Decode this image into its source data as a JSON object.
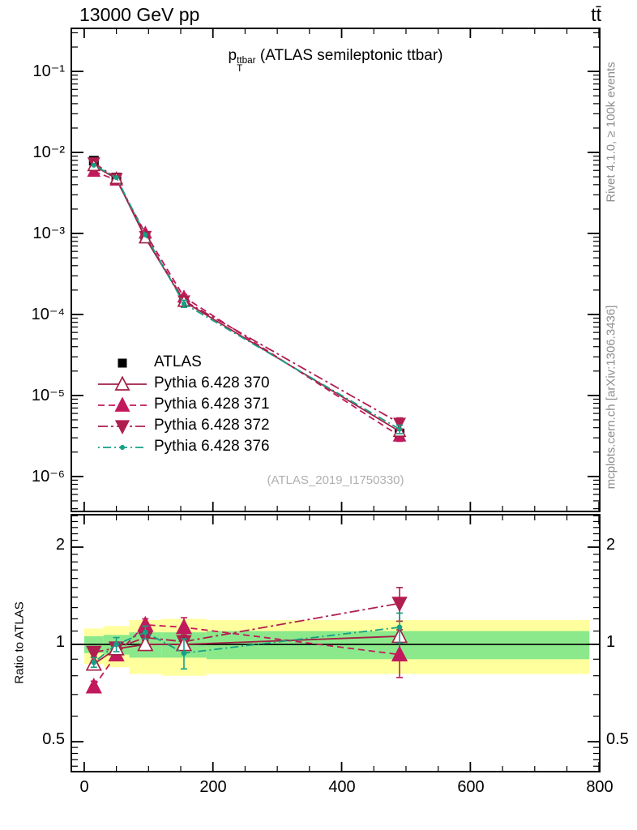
{
  "header": {
    "left": "13000 GeV pp",
    "right": "tt̄"
  },
  "title": {
    "base": "p",
    "sub": "T",
    "sup": "ttbar",
    "rest": "(ATLAS semileptonic ttbar)"
  },
  "watermark": "(ATLAS_2019_I1750330)",
  "side_notes": {
    "rivet": "Rivet 4.1.0, ≥ 100k events",
    "mcplots": "mcplots.cern.ch [arXiv:1306.3436]"
  },
  "ratio_ylabel": "Ratio to ATLAS",
  "axes": {
    "x_labels": [
      "0",
      "200",
      "400",
      "600",
      "800"
    ],
    "y_top_labels": [
      "10⁻¹",
      "10⁻²",
      "10⁻³",
      "10⁻⁴",
      "10⁻⁵",
      "10⁻⁶"
    ],
    "ratio_labels": [
      "2",
      "1",
      "0.5"
    ]
  },
  "colors": {
    "atlas": "#000000",
    "p370": "#a32045",
    "p371": "#c2195c",
    "p372": "#b01e50",
    "p376": "#16a085",
    "band_yellow": "#ffff9e",
    "band_green": "#8be98b",
    "frame": "#000000",
    "gray_text": "#8f8f8f",
    "watermark_gray": "#b0b0b0"
  },
  "chart_data": {
    "type": "line",
    "title": "p_T^ttbar (ATLAS semileptonic ttbar)",
    "xlabel": "",
    "ylabel_ratio": "Ratio to ATLAS",
    "xlim": [
      -20,
      801
    ],
    "x_major_ticks": [
      0,
      200,
      400,
      600,
      800
    ],
    "x_minor_step": 50,
    "x": [
      15,
      50,
      95,
      155,
      490
    ],
    "bin_edges": [
      0,
      30,
      70,
      120,
      190,
      785
    ],
    "top_panel": {
      "yscale": "log",
      "ylim": [
        3.7e-07,
        0.34
      ],
      "y_decade_labels": [
        -1,
        -2,
        -3,
        -4,
        -5,
        -6
      ],
      "series": [
        {
          "name": "ATLAS",
          "marker": "square",
          "line": "none",
          "color_key": "atlas",
          "values": [
            0.0079,
            0.0049,
            0.00088,
            0.000145,
            3.4e-06
          ],
          "yerr_rel": [
            0.02,
            0.02,
            0.02,
            0.03,
            0.08
          ]
        },
        {
          "name": "Pythia 6.428 370",
          "marker": "triangle-open",
          "line": "solid",
          "dash": "",
          "color_key": "p370",
          "values": [
            0.00687,
            0.00475,
            0.00088,
            0.000145,
            3.6e-06
          ],
          "yerr_rel": [
            0.02,
            0.015,
            0.025,
            0.035,
            0.05
          ]
        },
        {
          "name": "Pythia 6.428 371",
          "marker": "triangle-up",
          "line": "dashed",
          "dash": "8 5",
          "color_key": "p371",
          "values": [
            0.00585,
            0.00456,
            0.00101,
            0.000164,
            3.16e-06
          ],
          "yerr_rel": [
            0.03,
            0.02,
            0.05,
            0.08,
            0.14
          ]
        },
        {
          "name": "Pythia 6.428 372",
          "marker": "triangle-down",
          "line": "dashdot",
          "dash": "12 4 3 4",
          "color_key": "p372",
          "values": [
            0.00747,
            0.00478,
            0.000924,
            0.000148,
            4.56e-06
          ],
          "yerr_rel": [
            0.03,
            0.02,
            0.04,
            0.05,
            0.16
          ]
        },
        {
          "name": "Pythia 6.428 376",
          "marker": "dot",
          "line": "dashdot-fine",
          "dash": "2 4 10 4",
          "color_key": "p376",
          "values": [
            0.00695,
            0.0049,
            0.000959,
            0.000136,
            3.84e-06
          ],
          "yerr_rel": [
            0.03,
            0.05,
            0.05,
            0.1,
            0.12
          ]
        }
      ]
    },
    "ratio_panel": {
      "yscale": "log",
      "ylim": [
        0.404,
        2.52
      ],
      "ref_line": 1.0,
      "bands": {
        "bin_edges": [
          0,
          30,
          70,
          120,
          190,
          785
        ],
        "yellow": [
          [
            0.87,
            1.12
          ],
          [
            0.85,
            1.14
          ],
          [
            0.81,
            1.19
          ],
          [
            0.8,
            1.2
          ],
          [
            0.81,
            1.19
          ]
        ],
        "green": [
          [
            0.94,
            1.06
          ],
          [
            0.93,
            1.07
          ],
          [
            0.91,
            1.09
          ],
          [
            0.91,
            1.09
          ],
          [
            0.9,
            1.1
          ]
        ]
      },
      "series": [
        {
          "name": "Pythia 6.428 370",
          "marker": "triangle-open",
          "dash": "",
          "color_key": "p370",
          "values": [
            0.87,
            0.97,
            1.0,
            1.0,
            1.06
          ],
          "yerr": [
            0.02,
            0.015,
            0.025,
            0.035,
            0.05
          ]
        },
        {
          "name": "Pythia 6.428 371",
          "marker": "triangle-up",
          "dash": "8 5",
          "color_key": "p371",
          "values": [
            0.74,
            0.93,
            1.15,
            1.13,
            0.93
          ],
          "yerr": [
            0.03,
            0.02,
            0.05,
            0.08,
            0.14
          ]
        },
        {
          "name": "Pythia 6.428 372",
          "marker": "triangle-down",
          "dash": "12 4 3 4",
          "color_key": "p372",
          "values": [
            0.945,
            0.975,
            1.05,
            1.02,
            1.34
          ],
          "yerr": [
            0.03,
            0.02,
            0.04,
            0.05,
            0.16
          ]
        },
        {
          "name": "Pythia 6.428 376",
          "marker": "dot",
          "dash": "2 4 10 4",
          "color_key": "p376",
          "values": [
            0.88,
            1.0,
            1.09,
            0.94,
            1.13
          ],
          "yerr": [
            0.03,
            0.05,
            0.05,
            0.1,
            0.12
          ]
        }
      ]
    },
    "legend_position": "center-left"
  }
}
